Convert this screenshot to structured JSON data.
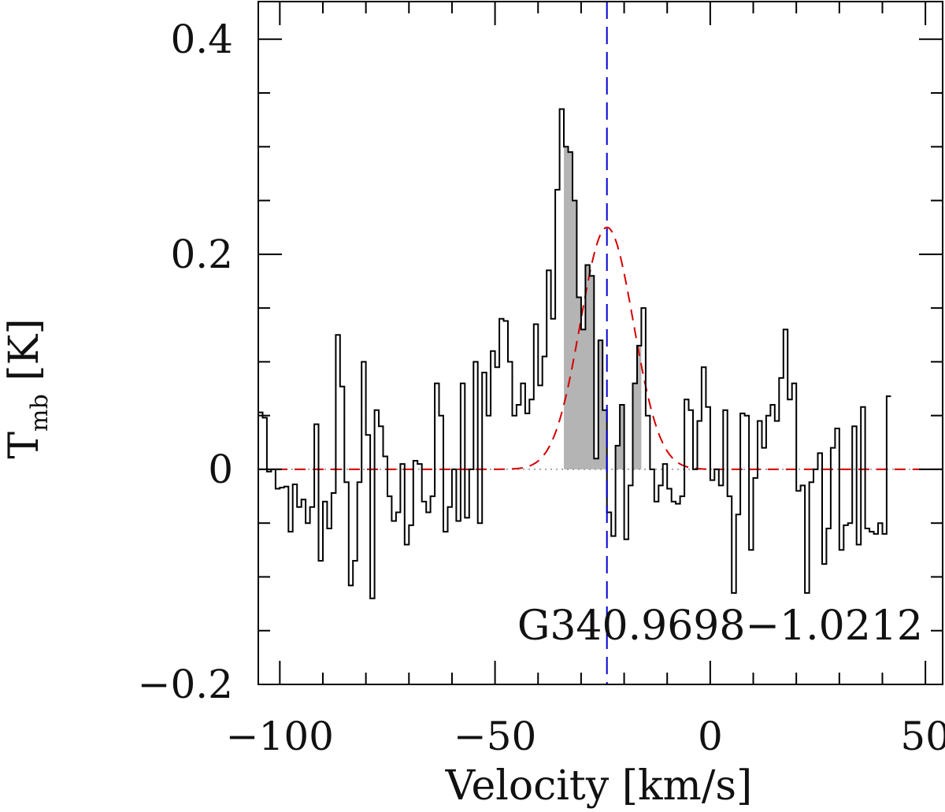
{
  "chart_data": {
    "type": "line",
    "xlabel": "Velocity [km/s]",
    "ylabel_main": "T",
    "ylabel_sub": "mb",
    "ylabel_unit": " [K]",
    "annotation": "G340.9698−1.0212",
    "xlim": [
      -105,
      54
    ],
    "ylim": [
      -0.2,
      0.435
    ],
    "xticks": [
      -100,
      -50,
      0,
      50
    ],
    "xtick_labels": [
      "−100",
      "−50",
      "0",
      "50"
    ],
    "yticks": [
      -0.2,
      0,
      0.2,
      0.4
    ],
    "ytick_labels": [
      "−0.2",
      "0",
      "0.2",
      "0.4"
    ],
    "x_minor_step": 10,
    "y_minor_step": 0.05,
    "v_ref": -24,
    "integration_range": [
      -34,
      -16
    ],
    "channel_width": 1.0,
    "spectrum_x_start": -105,
    "spectrum_values": [
      0.053,
      0.048,
      -0.002,
      0.0,
      -0.018,
      -0.017,
      -0.016,
      -0.058,
      -0.014,
      -0.035,
      -0.028,
      -0.05,
      -0.035,
      0.042,
      -0.085,
      -0.03,
      -0.055,
      -0.022,
      0.125,
      0.077,
      -0.012,
      -0.108,
      -0.085,
      -0.012,
      0.1,
      0.032,
      -0.12,
      0.055,
      0.04,
      0.012,
      -0.025,
      -0.048,
      -0.04,
      0.005,
      -0.07,
      -0.052,
      0.008,
      0.005,
      -0.03,
      -0.04,
      -0.025,
      0.08,
      0.05,
      -0.058,
      -0.035,
      0.0,
      -0.048,
      0.08,
      -0.045,
      0.0,
      0.1,
      -0.05,
      0.09,
      0.05,
      0.11,
      0.095,
      0.14,
      0.138,
      0.1,
      0.05,
      0.06,
      0.08,
      0.052,
      0.065,
      0.135,
      0.078,
      0.105,
      0.185,
      0.14,
      0.26,
      0.335,
      0.3,
      0.295,
      0.25,
      0.16,
      0.13,
      0.19,
      0.18,
      0.01,
      0.12,
      0.055,
      -0.04,
      -0.062,
      0.022,
      0.06,
      -0.065,
      -0.015,
      0.08,
      0.115,
      0.15,
      0.05,
      0.0,
      -0.03,
      -0.015,
      0.005,
      -0.018,
      -0.03,
      -0.032,
      -0.025,
      0.065,
      0.055,
      0.0,
      0.045,
      0.095,
      0.058,
      -0.01,
      0.0,
      -0.015,
      0.055,
      -0.025,
      -0.115,
      -0.042,
      0.052,
      0.05,
      -0.075,
      -0.008,
      0.045,
      0.02,
      0.05,
      0.06,
      0.045,
      0.085,
      0.13,
      0.065,
      0.08,
      -0.02,
      -0.015,
      -0.115,
      -0.012,
      0.0,
      0.015,
      -0.088,
      -0.055,
      0.02,
      0.038,
      -0.075,
      -0.052,
      -0.05,
      0.04,
      -0.07,
      0.058,
      -0.055,
      -0.058,
      -0.06,
      -0.05,
      -0.06,
      0.068
    ],
    "gaussian_fit": {
      "amplitude": 0.225,
      "center": -24,
      "fwhm": 14.5
    },
    "colors": {
      "spectrum": "#000000",
      "fill": "#b4b4b4",
      "fit": "#d40000",
      "vref": "#0000d4",
      "baseline": "#8c8c8c",
      "axes": "#000000"
    }
  }
}
